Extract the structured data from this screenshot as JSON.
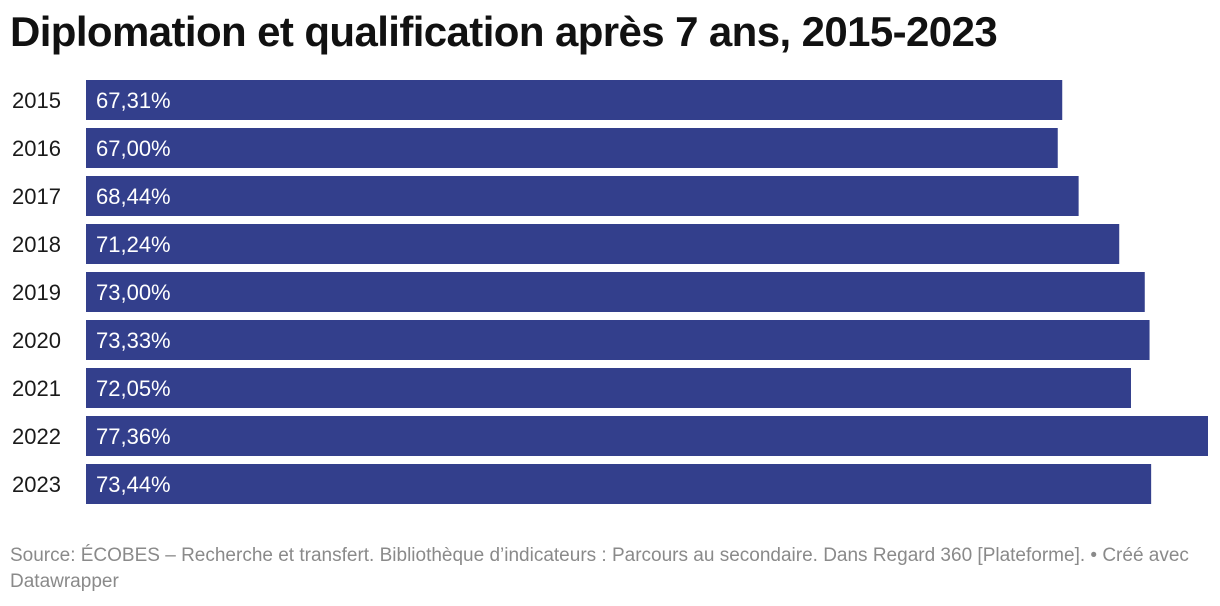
{
  "chart_data": {
    "type": "bar",
    "orientation": "horizontal",
    "title": "Diplomation et qualification après 7 ans, 2015-2023",
    "categories": [
      "2015",
      "2016",
      "2017",
      "2018",
      "2019",
      "2020",
      "2021",
      "2022",
      "2023"
    ],
    "values": [
      67.31,
      67.0,
      68.44,
      71.24,
      73.0,
      73.33,
      72.05,
      77.36,
      73.44
    ],
    "value_labels": [
      "67,31%",
      "67,00%",
      "68,44%",
      "71,24%",
      "73,00%",
      "73,33%",
      "72,05%",
      "77,36%",
      "73,44%"
    ],
    "xlim": [
      0,
      77.36
    ],
    "grid": false,
    "bar_color": "#333f8c"
  },
  "footer": {
    "source": "Source: ÉCOBES – Recherche et transfert. Bibliothèque d’indicateurs : Parcours au secondaire. Dans Regard 360 [Plateforme]. • Créé avec Datawrapper"
  }
}
